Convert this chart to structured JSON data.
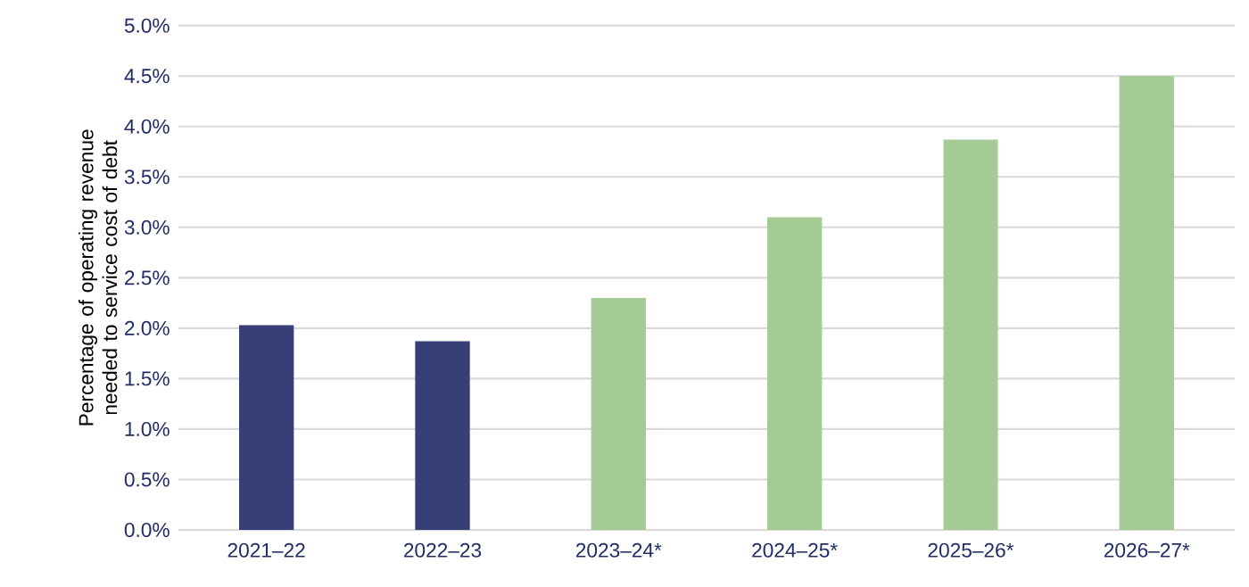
{
  "chart_data": {
    "type": "bar",
    "ylabel": "Percentage of operating revenue needed to service cost of debt",
    "categories": [
      "2021–22",
      "2022–23",
      "2023–24*",
      "2024–25*",
      "2025–26*",
      "2026–27*"
    ],
    "values": [
      2.03,
      1.87,
      2.3,
      3.1,
      3.87,
      4.5
    ],
    "colors": [
      "#383f76",
      "#383f76",
      "#a5cb95",
      "#a5cb95",
      "#a5cb95",
      "#a5cb95"
    ],
    "ylim": [
      0,
      5
    ],
    "yticks": [
      {
        "value": 0,
        "label": "0.0%"
      },
      {
        "value": 0.5,
        "label": "0.5%"
      },
      {
        "value": 1,
        "label": "1.0%"
      },
      {
        "value": 1.5,
        "label": "1.5%"
      },
      {
        "value": 2,
        "label": "2.0%"
      },
      {
        "value": 2.5,
        "label": "2.5%"
      },
      {
        "value": 3,
        "label": "3.0%"
      },
      {
        "value": 3.5,
        "label": "3.5%"
      },
      {
        "value": 4,
        "label": "4.0%"
      },
      {
        "value": 4.5,
        "label": "4.5%"
      },
      {
        "value": 5,
        "label": "5.0%"
      }
    ],
    "grid": "y"
  }
}
